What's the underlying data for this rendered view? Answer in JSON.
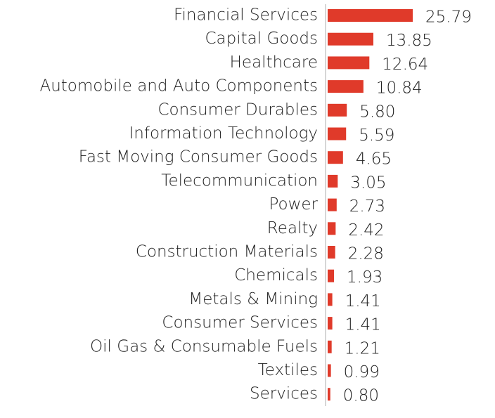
{
  "chart_data": {
    "type": "barh",
    "categories": [
      "Financial Services",
      "Capital Goods",
      "Healthcare",
      "Automobile and Auto Components",
      "Consumer Durables",
      "Information Technology",
      "Fast Moving Consumer Goods",
      "Telecommunication",
      "Power",
      "Realty",
      "Construction Materials",
      "Chemicals",
      "Metals & Mining",
      "Consumer Services",
      "Oil Gas & Consumable Fuels",
      "Textiles",
      "Services"
    ],
    "values": [
      25.79,
      13.85,
      12.64,
      10.84,
      5.8,
      5.59,
      4.65,
      3.05,
      2.73,
      2.42,
      2.28,
      1.93,
      1.41,
      1.41,
      1.21,
      0.99,
      0.8
    ],
    "value_labels": [
      "25.79",
      "13.85",
      "12.64",
      "10.84",
      "5.80",
      "5.59",
      "4.65",
      "3.05",
      "2.73",
      "2.42",
      "2.28",
      "1.93",
      "1.41",
      "1.41",
      "1.21",
      "0.99",
      "0.80"
    ],
    "color": "#e03a2a"
  }
}
